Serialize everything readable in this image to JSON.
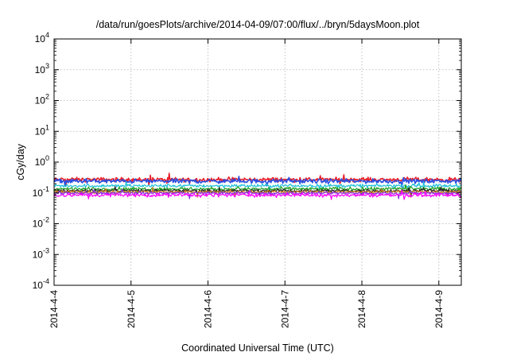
{
  "chart_data": {
    "type": "line",
    "title": "/data/run/goesPlots/archive/2014-04-09/07:00/flux/../bryn/5daysMoon.plot",
    "xlabel": "Coordinated Universal Time (UTC)",
    "ylabel": "cGy/day",
    "y_scale": "log",
    "ylim": [
      0.0001,
      10000
    ],
    "y_ticks": [
      {
        "base": "10",
        "exp": "-4",
        "value": 0.0001
      },
      {
        "base": "10",
        "exp": "-3",
        "value": 0.001
      },
      {
        "base": "10",
        "exp": "-2",
        "value": 0.01
      },
      {
        "base": "10",
        "exp": "-1",
        "value": 0.1
      },
      {
        "base": "10",
        "exp": "0",
        "value": 1
      },
      {
        "base": "10",
        "exp": "1",
        "value": 10
      },
      {
        "base": "10",
        "exp": "2",
        "value": 100
      },
      {
        "base": "10",
        "exp": "3",
        "value": 1000
      },
      {
        "base": "10",
        "exp": "4",
        "value": 10000
      }
    ],
    "xlim": [
      "2014-04-04 00:00",
      "2014-04-09 07:00"
    ],
    "x_ticks": [
      "2014-4-4",
      "2014-4-5",
      "2014-4-6",
      "2014-4-7",
      "2014-4-8",
      "2014-4-9"
    ],
    "grid": true,
    "legend": "none",
    "series": [
      {
        "color": "#e8202a",
        "level": 0.27,
        "jitter": 0.1,
        "x": [
          "2014-04-04 00:00",
          "2014-04-09 07:00"
        ],
        "y": [
          0.27,
          0.27
        ]
      },
      {
        "color": "#2b4ee0",
        "level": 0.24,
        "jitter": 0.1,
        "x": [
          "2014-04-04 00:00",
          "2014-04-09 07:00"
        ],
        "y": [
          0.24,
          0.24
        ]
      },
      {
        "color": "#1fc0d8",
        "level": 0.17,
        "jitter": 0.08,
        "x": [
          "2014-04-04 00:00",
          "2014-04-09 07:00"
        ],
        "y": [
          0.17,
          0.17
        ]
      },
      {
        "color": "#20a020",
        "level": 0.135,
        "jitter": 0.08,
        "x": [
          "2014-04-04 00:00",
          "2014-04-09 07:00"
        ],
        "y": [
          0.135,
          0.135
        ]
      },
      {
        "color": "#222222",
        "level": 0.118,
        "jitter": 0.07,
        "x": [
          "2014-04-04 00:00",
          "2014-04-09 07:00"
        ],
        "y": [
          0.118,
          0.118
        ]
      },
      {
        "color": "#c87a1a",
        "level": 0.108,
        "jitter": 0.07,
        "x": [
          "2014-04-04 00:00",
          "2014-04-09 07:00"
        ],
        "y": [
          0.108,
          0.108
        ]
      },
      {
        "color": "#8a2be2",
        "level": 0.098,
        "jitter": 0.07,
        "x": [
          "2014-04-04 00:00",
          "2014-04-09 07:00"
        ],
        "y": [
          0.098,
          0.098
        ]
      },
      {
        "color": "#ff00ff",
        "level": 0.085,
        "jitter": 0.09,
        "x": [
          "2014-04-04 00:00",
          "2014-04-09 07:00"
        ],
        "y": [
          0.085,
          0.085
        ]
      }
    ]
  }
}
